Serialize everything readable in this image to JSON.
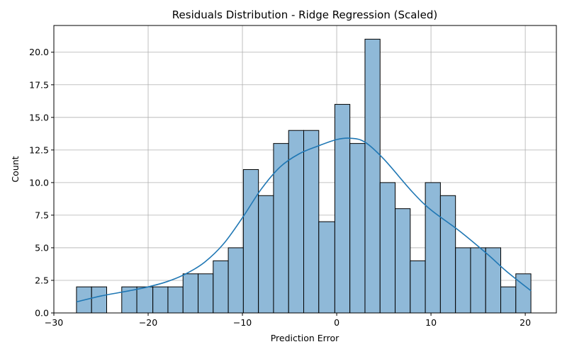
{
  "chart_data": {
    "type": "bar",
    "subtype": "histogram",
    "title": "Residuals Distribution - Ridge Regression (Scaled)",
    "xlabel": "Prediction Error",
    "ylabel": "Count",
    "xlim": [
      -30,
      23.3
    ],
    "ylim": [
      0,
      22.05
    ],
    "xticks": [
      -30,
      -20,
      -10,
      0,
      10,
      20
    ],
    "xtick_labels": [
      "−30",
      "−20",
      "−10",
      "0",
      "10",
      "20"
    ],
    "yticks": [
      0,
      2.5,
      5,
      7.5,
      10,
      12.5,
      15,
      17.5,
      20
    ],
    "ytick_labels": [
      "0.0",
      "2.5",
      "5.0",
      "7.5",
      "10.0",
      "12.5",
      "15.0",
      "17.5",
      "20.0"
    ],
    "grid": true,
    "bin_edges": [
      -27.6,
      -26.0,
      -24.4,
      -22.8,
      -21.2,
      -19.5,
      -17.9,
      -16.3,
      -14.7,
      -13.1,
      -11.5,
      -9.9,
      -8.3,
      -6.7,
      -5.1,
      -3.5,
      -1.9,
      -0.2,
      1.4,
      3.0,
      4.6,
      6.2,
      7.8,
      9.4,
      11.0,
      12.6,
      14.2,
      15.8,
      17.4,
      19.0,
      20.6
    ],
    "counts": [
      2,
      2,
      0,
      2,
      2,
      2,
      2,
      3,
      3,
      4,
      5,
      11,
      9,
      13,
      14,
      14,
      7,
      16,
      13,
      21,
      10,
      8,
      4,
      10,
      9,
      5,
      5,
      5,
      2,
      3
    ],
    "kde": {
      "x": [
        -27.6,
        -25,
        -22,
        -20,
        -18,
        -16,
        -14,
        -12,
        -10,
        -8,
        -6,
        -4,
        -2,
        0,
        1.5,
        3,
        5,
        8,
        10,
        13,
        16,
        18,
        20.6
      ],
      "y": [
        0.85,
        1.3,
        1.7,
        2.0,
        2.4,
        3.0,
        3.9,
        5.3,
        7.3,
        9.5,
        11.2,
        12.2,
        12.8,
        13.3,
        13.4,
        13.1,
        11.8,
        9.3,
        7.9,
        6.3,
        4.5,
        3.2,
        1.7
      ]
    },
    "colors": {
      "bar_fill": "#8fb9d8",
      "bar_edge": "#000000",
      "kde_line": "#1f77b4",
      "grid": "#b0b0b0"
    }
  }
}
